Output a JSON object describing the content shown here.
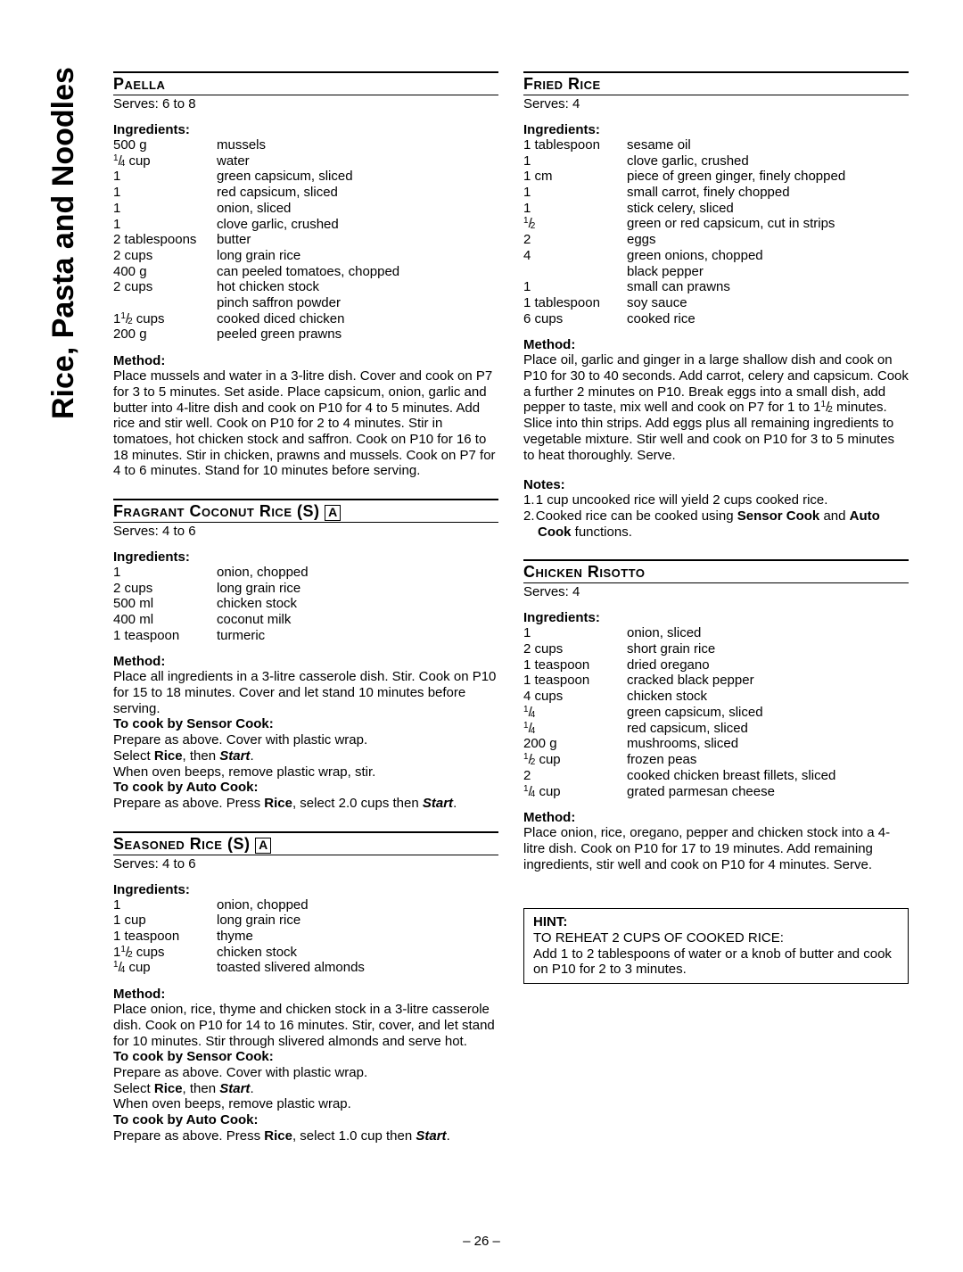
{
  "sideTab": "Rice, Pasta and Noodles",
  "pageNumber": "– 26 –",
  "hint": {
    "label": "HINT:",
    "line1": "TO REHEAT 2 CUPS OF COOKED RICE:",
    "line2": "Add 1 to 2 tablespoons of water or a knob of butter and cook on P10 for 2 to 3 minutes."
  },
  "left": {
    "paella": {
      "title": "Paella",
      "serves": "Serves: 6 to 8",
      "ingLabel": "Ingredients:",
      "ing": [
        [
          "500 g",
          "mussels"
        ],
        [
          "__F14__ cup",
          "water"
        ],
        [
          "1",
          "green capsicum, sliced"
        ],
        [
          "1",
          "red capsicum, sliced"
        ],
        [
          "1",
          "onion, sliced"
        ],
        [
          "1",
          "clove garlic, crushed"
        ],
        [
          "2 tablespoons",
          "butter"
        ],
        [
          "2 cups",
          "long grain rice"
        ],
        [
          "400 g",
          "can peeled tomatoes, chopped"
        ],
        [
          "2 cups",
          "hot chicken stock"
        ],
        [
          "",
          "pinch saffron powder"
        ],
        [
          "1__F12__ cups",
          "cooked diced chicken"
        ],
        [
          "200 g",
          "peeled green prawns"
        ]
      ],
      "methodLabel": "Method:",
      "method": "Place mussels and water in a 3-litre dish. Cover and cook on P7 for 3 to 5 minutes. Set aside. Place capsicum, onion, garlic and butter into 4-litre dish and cook on P10 for 4 to 5 minutes. Add rice and stir well. Cook on P10 for 2 to 4 minutes. Stir in tomatoes, hot chicken stock and saffron. Cook on P10 for 16 to 18 minutes. Stir in chicken, prawns and mussels. Cook on P7 for 4 to 6 minutes. Stand for 10 minutes before serving."
    },
    "coconut": {
      "title": "Fragrant Coconut Rice (S)",
      "badge": "A",
      "serves": "Serves: 4 to 6",
      "ingLabel": "Ingredients:",
      "ing": [
        [
          "1",
          "onion, chopped"
        ],
        [
          "2 cups",
          "long grain rice"
        ],
        [
          "500 ml",
          "chicken stock"
        ],
        [
          "400 ml",
          "coconut milk"
        ],
        [
          "1 teaspoon",
          "turmeric"
        ]
      ],
      "methodLabel": "Method:",
      "m1": "Place all ingredients in a 3-litre casserole dish. Stir. Cook on P10 for 15 to 18 minutes. Cover and let stand 10 minutes before serving.",
      "m2l": "To cook by Sensor Cook:",
      "m3": "Prepare as above. Cover with plastic wrap.",
      "m4a": "Select ",
      "m4b": "Rice",
      "m4c": ", then ",
      "m4d": "Start",
      "m4e": ".",
      "m5": "When oven beeps, remove plastic wrap, stir.",
      "m6l": "To cook by Auto Cook:",
      "m7a": "Prepare as above. Press ",
      "m7b": "Rice",
      "m7c": ", select 2.0 cups then ",
      "m7d": "Start",
      "m7e": "."
    },
    "seasoned": {
      "title": "Seasoned Rice (S)",
      "badge": "A",
      "serves": "Serves: 4 to 6",
      "ingLabel": "Ingredients:",
      "ing": [
        [
          "1",
          "onion, chopped"
        ],
        [
          "1 cup",
          "long grain rice"
        ],
        [
          "1 teaspoon",
          "thyme"
        ],
        [
          "1__F12__ cups",
          "chicken stock"
        ],
        [
          "__F14__ cup",
          "toasted slivered almonds"
        ]
      ],
      "methodLabel": "Method:",
      "m1": "Place onion, rice, thyme and chicken stock in a 3-litre casserole dish. Cook on P10 for 14 to 16 minutes. Stir, cover, and let stand for 10 minutes. Stir through slivered almonds and serve hot.",
      "m2l": "To cook by Sensor Cook:",
      "m3": "Prepare as above. Cover with plastic wrap.",
      "m4a": "Select ",
      "m4b": "Rice",
      "m4c": ", then ",
      "m4d": "Start",
      "m4e": ".",
      "m5": "When oven beeps, remove plastic wrap.",
      "m6l": "To cook by Auto Cook:",
      "m7a": "Prepare as above. Press ",
      "m7b": "Rice",
      "m7c": ", select 1.0 cup then ",
      "m7d": "Start",
      "m7e": "."
    }
  },
  "right": {
    "fried": {
      "title": "Fried Rice",
      "serves": "Serves: 4",
      "ingLabel": "Ingredients:",
      "ing": [
        [
          "1 tablespoon",
          "sesame oil"
        ],
        [
          "1",
          "clove garlic, crushed"
        ],
        [
          "1 cm",
          "piece of green ginger, finely chopped"
        ],
        [
          "1",
          "small carrot, finely chopped"
        ],
        [
          "1",
          "stick celery, sliced"
        ],
        [
          "__F12__",
          "green or red capsicum, cut in strips"
        ],
        [
          "2",
          "eggs"
        ],
        [
          "4",
          "green onions, chopped"
        ],
        [
          "",
          "black pepper"
        ],
        [
          "1",
          "small can prawns"
        ],
        [
          "1 tablespoon",
          "soy sauce"
        ],
        [
          "6 cups",
          "cooked rice"
        ]
      ],
      "methodLabel": "Method:",
      "method": "Place oil, garlic and ginger in a large shallow dish and cook on P10 for 30 to 40 seconds. Add carrot, celery and capsicum. Cook a further 2 minutes on P10. Break eggs into a small dish, add pepper to taste, mix well and cook on P7 for 1 to 1__F12__ minutes. Slice into thin strips. Add eggs plus all remaining ingredients to vegetable mixture. Stir well and cook on P10 for 3 to 5 minutes to heat thoroughly. Serve.",
      "notesLabel": "Notes:",
      "note1": "1 cup uncooked rice will yield 2 cups cooked rice.",
      "note2a": "Cooked rice can be cooked using ",
      "note2b": "Sensor Cook",
      "note2c": " and ",
      "note2d": "Auto Cook",
      "note2e": " functions."
    },
    "risotto": {
      "title": "Chicken Risotto",
      "serves": "Serves: 4",
      "ingLabel": "Ingredients:",
      "ing": [
        [
          "1",
          "onion, sliced"
        ],
        [
          "2 cups",
          "short grain rice"
        ],
        [
          "1 teaspoon",
          "dried oregano"
        ],
        [
          "1 teaspoon",
          "cracked black pepper"
        ],
        [
          "4 cups",
          "chicken stock"
        ],
        [
          "__F14__",
          "green capsicum, sliced"
        ],
        [
          "__F14__",
          "red capsicum, sliced"
        ],
        [
          "200 g",
          "mushrooms, sliced"
        ],
        [
          "__F12__ cup",
          "frozen peas"
        ],
        [
          "2",
          "cooked chicken breast fillets, sliced"
        ],
        [
          "__F14__ cup",
          "grated parmesan cheese"
        ]
      ],
      "methodLabel": "Method:",
      "method": "Place  onion, rice, oregano, pepper and chicken stock into a 4-litre dish. Cook on P10 for 17 to 19 minutes. Add remaining ingredients, stir well and cook on P10 for 4 minutes. Serve."
    }
  }
}
